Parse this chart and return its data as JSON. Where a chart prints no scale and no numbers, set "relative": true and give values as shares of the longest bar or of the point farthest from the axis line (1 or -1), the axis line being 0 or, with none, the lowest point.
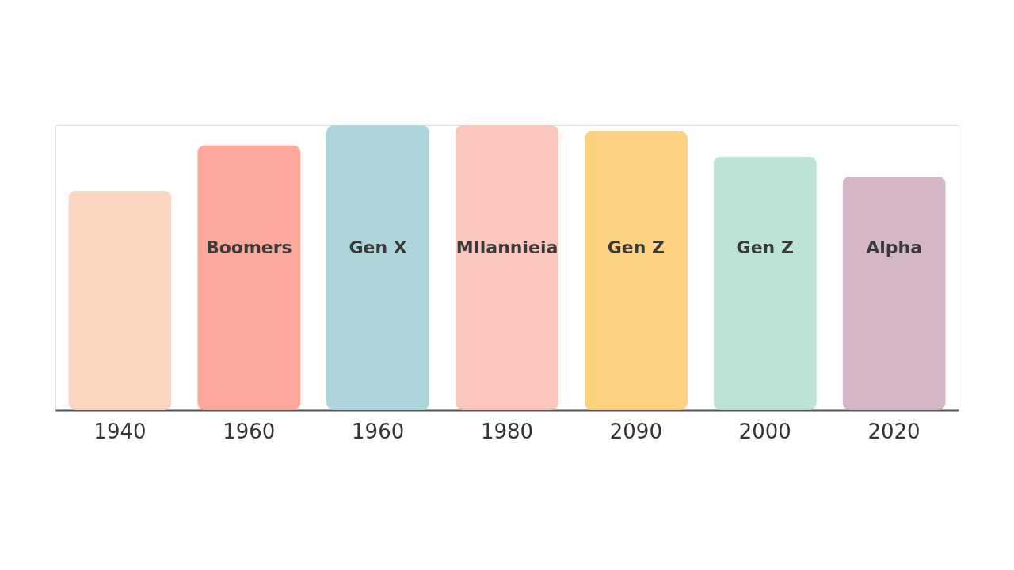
{
  "chart_data": {
    "type": "bar",
    "relative": true,
    "grid": false,
    "categories": [
      "1940",
      "1960",
      "1960",
      "1980",
      "2090",
      "2000",
      "2020"
    ],
    "values": [
      0.77,
      0.93,
      1.0,
      1.0,
      0.98,
      0.89,
      0.82
    ],
    "colors": [
      "#fbd5bd",
      "#fca89a",
      "#acd6dc",
      "#fac6bc",
      "#fdd382",
      "#bde3d6",
      "#d3b7c7"
    ],
    "legend": false,
    "annotations": [
      "Boomers",
      "Gen X",
      "MIlannieia",
      "Gen Z",
      "Gen Z",
      "Alpha"
    ]
  }
}
